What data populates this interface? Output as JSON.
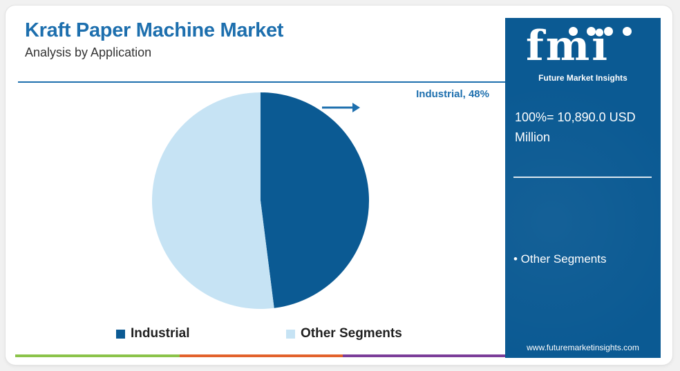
{
  "header": {
    "title": "Kraft Paper Machine Market",
    "subtitle": "Analysis by Application"
  },
  "chart_data": {
    "type": "pie",
    "title": "Kraft Paper Machine Market",
    "subtitle": "Analysis by Application",
    "slices": [
      {
        "label": "Industrial",
        "value": 48,
        "color": "#0b5a93"
      },
      {
        "label": "Other Segments",
        "value": 52,
        "color": "#c6e3f4"
      }
    ],
    "annotation": "Industrial, 48%",
    "legend_position": "bottom"
  },
  "legend": [
    {
      "label": "Industrial",
      "color": "#0b5a93"
    },
    {
      "label": "Other Segments",
      "color": "#c6e3f4"
    }
  ],
  "sidebar": {
    "logo_text": "fmi",
    "logo_subtitle": "Future Market Insights",
    "total_label": "100%= 10,890.0 USD Million",
    "segment_item": "• Other Segments",
    "website": "www.futuremarketinsights.com"
  },
  "colors": {
    "brand_blue": "#0b5a93",
    "title_blue": "#1d6fae",
    "light_blue": "#c6e3f4",
    "bar_green": "#8bc34a",
    "bar_orange": "#e2622c",
    "bar_purple": "#7b3d99"
  }
}
